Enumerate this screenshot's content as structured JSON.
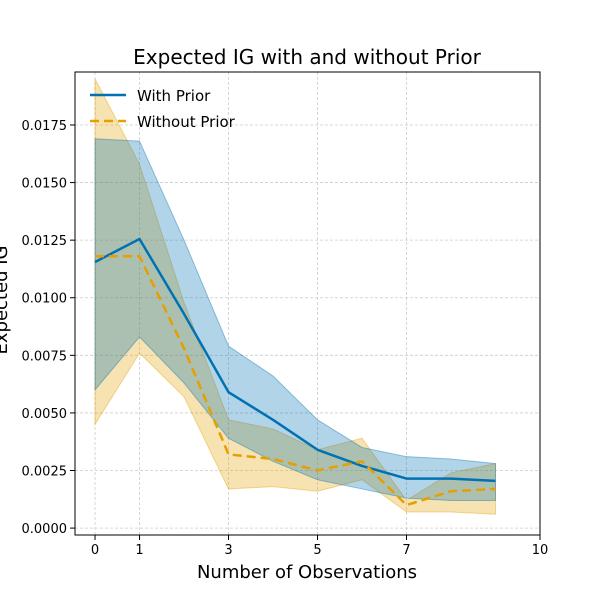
{
  "chart_data": {
    "type": "line",
    "title": "Expected IG with and without Prior",
    "xlabel": "Number of Observations",
    "ylabel": "Expected IG",
    "xlim": [
      -0.45,
      10
    ],
    "ylim": [
      -0.0003,
      0.0198
    ],
    "xticks": [
      0,
      1,
      3,
      5,
      7,
      10
    ],
    "yticks": [
      0.0,
      0.0025,
      0.005,
      0.0075,
      0.01,
      0.0125,
      0.015,
      0.0175
    ],
    "ytick_labels": [
      "0.0000",
      "0.0025",
      "0.0050",
      "0.0075",
      "0.0100",
      "0.0125",
      "0.0150",
      "0.0175"
    ],
    "grid": true,
    "legend_position": "upper left",
    "series": [
      {
        "name": "With Prior",
        "color": "#0072B2",
        "linestyle": "solid",
        "x": [
          0,
          1,
          2,
          3,
          4,
          5,
          6,
          7,
          8,
          9
        ],
        "y": [
          0.01155,
          0.01255,
          0.0093,
          0.0059,
          0.0047,
          0.0034,
          0.0027,
          0.00215,
          0.00215,
          0.00205
        ],
        "lower": [
          0.006,
          0.0083,
          0.0063,
          0.0039,
          0.0029,
          0.0021,
          0.0017,
          0.0013,
          0.0012,
          0.0012
        ],
        "upper": [
          0.0169,
          0.0168,
          0.0125,
          0.0079,
          0.0066,
          0.0047,
          0.0035,
          0.0031,
          0.003,
          0.0028
        ]
      },
      {
        "name": "Without Prior",
        "color": "#E69F00",
        "linestyle": "dashed",
        "x": [
          0,
          1,
          2,
          3,
          4,
          5,
          6,
          7,
          8,
          9
        ],
        "y": [
          0.0118,
          0.0118,
          0.0078,
          0.0032,
          0.003,
          0.0025,
          0.0029,
          0.001,
          0.0016,
          0.0017
        ],
        "lower": [
          0.0045,
          0.0076,
          0.0057,
          0.0017,
          0.0018,
          0.0016,
          0.0021,
          0.0007,
          0.0007,
          0.0006
        ],
        "upper": [
          0.0195,
          0.0158,
          0.0098,
          0.0047,
          0.0043,
          0.0034,
          0.0039,
          0.0012,
          0.0024,
          0.0028
        ]
      }
    ]
  }
}
